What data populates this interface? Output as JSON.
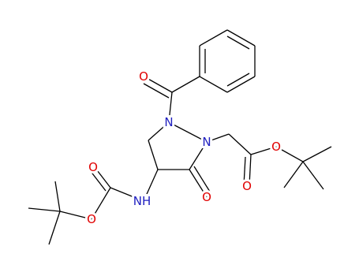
{
  "atoms": [
    {
      "label": "O"
    },
    {
      "label": "N"
    },
    {
      "label": "N"
    },
    {
      "label": "O"
    },
    {
      "label": "O"
    },
    {
      "label": "O"
    },
    {
      "label": "NH"
    },
    {
      "label": "O"
    },
    {
      "label": "O"
    }
  ]
}
